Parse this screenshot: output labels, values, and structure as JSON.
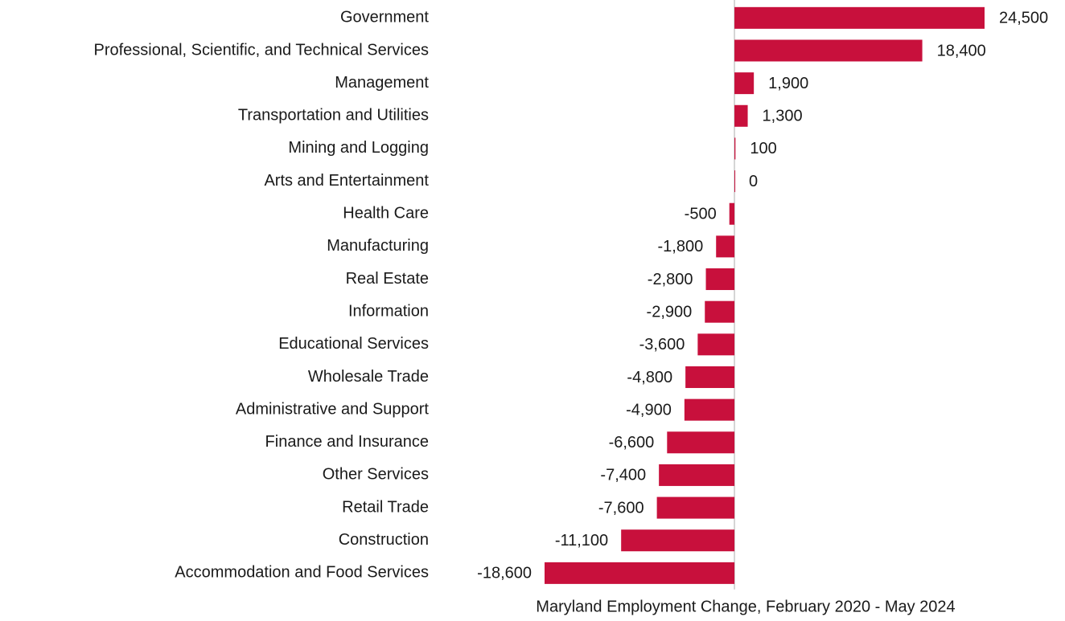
{
  "chart_data": {
    "type": "bar",
    "orientation": "horizontal",
    "title": "Maryland Employment Change, February 2020 - May 2024",
    "categories": [
      "Government",
      "Professional, Scientific, and Technical Services",
      "Management",
      "Transportation and Utilities",
      "Mining and Logging",
      "Arts and Entertainment",
      "Health Care",
      "Manufacturing",
      "Real Estate",
      "Information",
      "Educational Services",
      "Wholesale Trade",
      "Administrative and Support",
      "Finance and Insurance",
      "Other Services",
      "Retail Trade",
      "Construction",
      "Accommodation and Food Services"
    ],
    "values": [
      24500,
      18400,
      1900,
      1300,
      100,
      0,
      -500,
      -1800,
      -2800,
      -2900,
      -3600,
      -4800,
      -4900,
      -6600,
      -7400,
      -7600,
      -11100,
      -18600
    ],
    "value_labels": [
      "24,500",
      "18,400",
      "1,900",
      "1,300",
      "100",
      "0",
      "-500",
      "-1,800",
      "-2,800",
      "-2,900",
      "-3,600",
      "-4,800",
      "-4,900",
      "-6,600",
      "-7,400",
      "-7,600",
      "-11,100",
      "-18,600"
    ],
    "color": "#c8103c"
  }
}
